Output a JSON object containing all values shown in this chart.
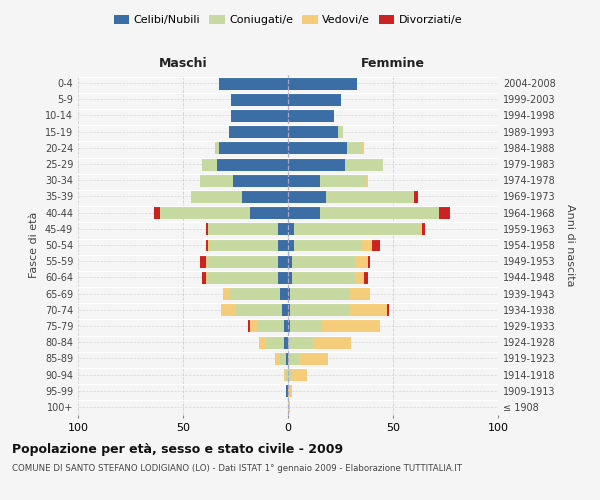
{
  "age_groups": [
    "100+",
    "95-99",
    "90-94",
    "85-89",
    "80-84",
    "75-79",
    "70-74",
    "65-69",
    "60-64",
    "55-59",
    "50-54",
    "45-49",
    "40-44",
    "35-39",
    "30-34",
    "25-29",
    "20-24",
    "15-19",
    "10-14",
    "5-9",
    "0-4"
  ],
  "birth_years": [
    "≤ 1908",
    "1909-1913",
    "1914-1918",
    "1919-1923",
    "1924-1928",
    "1929-1933",
    "1934-1938",
    "1939-1943",
    "1944-1948",
    "1949-1953",
    "1954-1958",
    "1959-1963",
    "1964-1968",
    "1969-1973",
    "1974-1978",
    "1979-1983",
    "1984-1988",
    "1989-1993",
    "1994-1998",
    "1999-2003",
    "2004-2008"
  ],
  "colors": {
    "celibi": "#3a6ea5",
    "coniugati": "#c5d9a0",
    "vedovi": "#f5cc7a",
    "divorziati": "#cc2222"
  },
  "maschi": {
    "celibi": [
      0,
      1,
      0,
      1,
      2,
      2,
      3,
      4,
      5,
      5,
      5,
      5,
      18,
      22,
      26,
      34,
      33,
      28,
      27,
      27,
      33
    ],
    "coniugati": [
      0,
      0,
      1,
      3,
      9,
      13,
      22,
      24,
      33,
      33,
      32,
      33,
      43,
      24,
      16,
      7,
      2,
      0,
      0,
      0,
      0
    ],
    "vedovi": [
      0,
      0,
      1,
      2,
      3,
      3,
      7,
      3,
      1,
      1,
      1,
      0,
      0,
      0,
      0,
      0,
      0,
      0,
      0,
      0,
      0
    ],
    "divorziati": [
      0,
      0,
      0,
      0,
      0,
      1,
      0,
      0,
      2,
      3,
      1,
      1,
      3,
      0,
      0,
      0,
      0,
      0,
      0,
      0,
      0
    ]
  },
  "femmine": {
    "celibi": [
      0,
      0,
      0,
      0,
      0,
      1,
      1,
      1,
      2,
      2,
      3,
      3,
      15,
      18,
      15,
      27,
      28,
      24,
      22,
      25,
      33
    ],
    "coniugati": [
      0,
      0,
      2,
      5,
      12,
      15,
      28,
      28,
      30,
      30,
      32,
      60,
      57,
      42,
      22,
      18,
      7,
      2,
      0,
      0,
      0
    ],
    "vedovi": [
      1,
      2,
      7,
      14,
      18,
      28,
      18,
      10,
      4,
      6,
      5,
      1,
      0,
      0,
      1,
      0,
      1,
      0,
      0,
      0,
      0
    ],
    "divorziati": [
      0,
      0,
      0,
      0,
      0,
      0,
      1,
      0,
      2,
      1,
      4,
      1,
      5,
      2,
      0,
      0,
      0,
      0,
      0,
      0,
      0
    ]
  },
  "xlim": 100,
  "title": "Popolazione per età, sesso e stato civile - 2009",
  "subtitle": "COMUNE DI SANTO STEFANO LODIGIANO (LO) - Dati ISTAT 1° gennaio 2009 - Elaborazione TUTTITALIA.IT",
  "ylabel_left": "Fasce di età",
  "ylabel_right": "Anni di nascita",
  "xlabel_maschi": "Maschi",
  "xlabel_femmine": "Femmine",
  "legend_labels": [
    "Celibi/Nubili",
    "Coniugati/e",
    "Vedovi/e",
    "Divorziati/e"
  ],
  "bg_color": "#f5f5f5",
  "grid_color": "#cccccc"
}
